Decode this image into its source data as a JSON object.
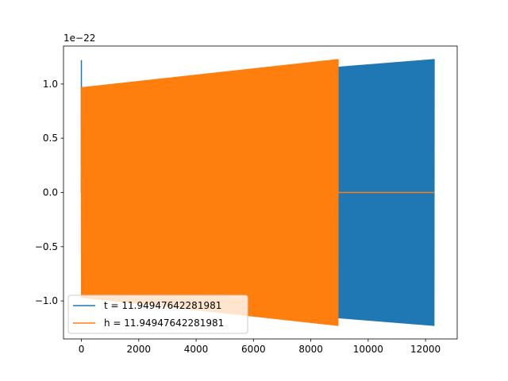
{
  "chart_data": {
    "type": "line",
    "title": "",
    "xlabel": "",
    "ylabel": "",
    "xlim": [
      -624,
      13104
    ],
    "ylim": [
      -1.35e-22,
      1.35e-22
    ],
    "x_ticks": [
      0,
      2000,
      4000,
      6000,
      8000,
      10000,
      12000
    ],
    "x_tick_labels": [
      "0",
      "2000",
      "4000",
      "6000",
      "8000",
      "10000",
      "12000"
    ],
    "y_ticks": [
      -1e-22,
      -5e-23,
      0,
      5e-23,
      1e-22
    ],
    "y_tick_labels": [
      "−1.0",
      "−0.5",
      "0.0",
      "0.5",
      "1.0"
    ],
    "y_offset_label": "1e−22",
    "grid": false,
    "legend_position": "lower-left",
    "series": [
      {
        "name": "t = 11.94947642281981",
        "color": "#1f77b4",
        "style": "dense-oscillation",
        "x_start": 0,
        "x_end": 12300,
        "amplitude_start": 9.7e-23,
        "amplitude_end": 1.23e-22,
        "initial_spike": 1.22e-22
      },
      {
        "name": "h = 11.94947642281981",
        "color": "#ff7f0e",
        "style": "dense-oscillation-then-zero",
        "x_start": 0,
        "x_end": 8950,
        "x_zero_end": 12300,
        "amplitude_start": 9.7e-23,
        "amplitude_end": 1.23e-22,
        "initial_value": 1e-23
      }
    ]
  }
}
